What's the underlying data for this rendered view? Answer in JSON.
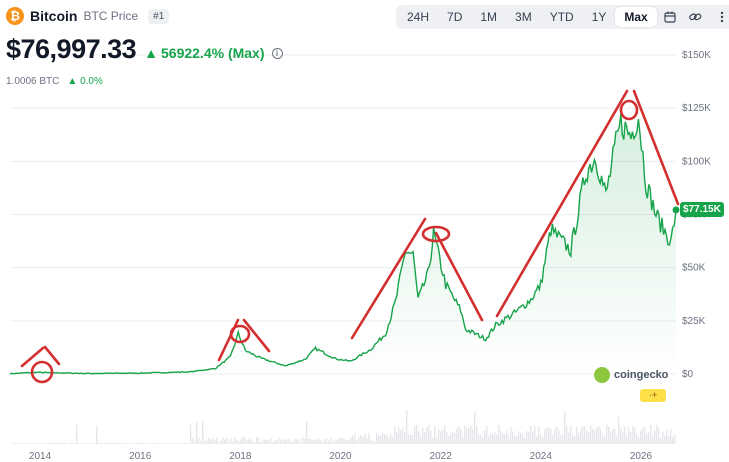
{
  "header": {
    "coin_name": "Bitcoin",
    "coin_symbol_label": "BTC Price",
    "rank": "#1",
    "logo_glyph": "₿"
  },
  "toolbar": {
    "timeframes": [
      "24H",
      "7D",
      "1M",
      "3M",
      "YTD",
      "1Y",
      "Max"
    ],
    "active": "Max",
    "icons": [
      "calendar-icon",
      "link-icon",
      "more-icon"
    ]
  },
  "price": {
    "value": "$76,997.33",
    "change": "56922.4% (Max)",
    "change_color": "#16a34a"
  },
  "btc_row": {
    "value": "1.0006 BTC",
    "change": "0.0%"
  },
  "current_tag": "$77.15K",
  "brand": {
    "name": "coingecko",
    "badge": "·+"
  },
  "chart_data": {
    "type": "line",
    "ylim": [
      0,
      150000
    ],
    "y_ticks": [
      "$150K",
      "$125K",
      "$100K",
      "$75K",
      "$50K",
      "$25K",
      "$0"
    ],
    "y_tick_values": [
      150000,
      125000,
      100000,
      75000,
      50000,
      25000,
      0
    ],
    "x_ticks": [
      "2014",
      "2016",
      "2018",
      "2020",
      "2022",
      "2024",
      "2026"
    ],
    "x_tick_values": [
      2014,
      2016,
      2018,
      2020,
      2022,
      2024,
      2026
    ],
    "xlim": [
      2013.4,
      2026.7
    ],
    "line_color": "#16a34a",
    "series": [
      {
        "x": [
          2013.4,
          2013.9,
          2014.2,
          2015.0,
          2016.0,
          2017.0,
          2017.5,
          2017.8,
          2017.96,
          2018.1,
          2018.4,
          2018.9,
          2019.3,
          2019.5,
          2019.9,
          2020.2,
          2020.6,
          2020.9,
          2021.1,
          2021.3,
          2021.45,
          2021.55,
          2021.75,
          2021.86,
          2022.1,
          2022.4,
          2022.5,
          2022.9,
          2023.1,
          2023.5,
          2023.8,
          2024.0,
          2024.2,
          2024.6,
          2024.9,
          2025.1,
          2025.3,
          2025.5,
          2025.6,
          2025.8,
          2025.95,
          2026.1,
          2026.3,
          2026.45,
          2026.6,
          2026.7
        ],
        "y": [
          120,
          800,
          600,
          250,
          430,
          1000,
          2600,
          8000,
          19000,
          11000,
          7500,
          3800,
          7000,
          12000,
          7200,
          6000,
          11500,
          19000,
          34000,
          58000,
          56000,
          35000,
          47000,
          66000,
          42000,
          30000,
          21000,
          16500,
          23000,
          29000,
          35000,
          42000,
          68000,
          58000,
          95000,
          102000,
          84000,
          108000,
          118000,
          112000,
          122000,
          90000,
          75000,
          68000,
          62000,
          77150
        ]
      }
    ],
    "annotations": [
      "red trend lines and circles marking cycle peaks"
    ]
  }
}
